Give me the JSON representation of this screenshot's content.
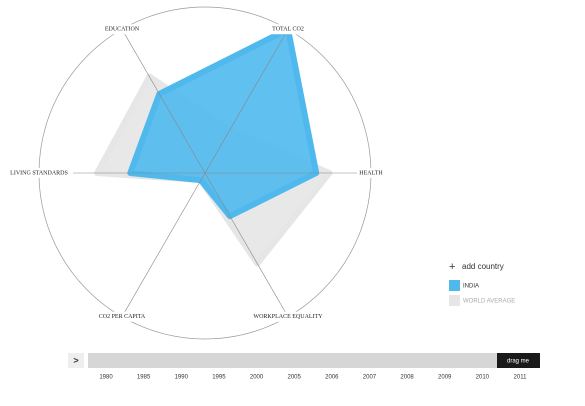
{
  "chart_data": {
    "type": "radar",
    "axes": [
      "EDUCATION",
      "TOTAL CO2",
      "HEALTH",
      "WORKPLACE EQUALITY",
      "CO2 PER CAPITA",
      "LIVING STANDARDS"
    ],
    "rlim": [
      0,
      100
    ],
    "series": [
      {
        "name": "WORLD AVERAGE",
        "color": "#e6e6e6",
        "values": [
          67,
          30,
          75,
          63,
          5,
          65
        ]
      },
      {
        "name": "INDIA",
        "color": "#4fb9ee",
        "values": [
          55,
          100,
          67,
          30,
          5,
          45
        ]
      }
    ]
  },
  "controls": {
    "add_country": "add country",
    "play": ">",
    "drag": "drag me",
    "years": [
      1980,
      1985,
      1990,
      1995,
      2000,
      2005,
      2006,
      2007,
      2008,
      2009,
      2010,
      2011
    ]
  }
}
